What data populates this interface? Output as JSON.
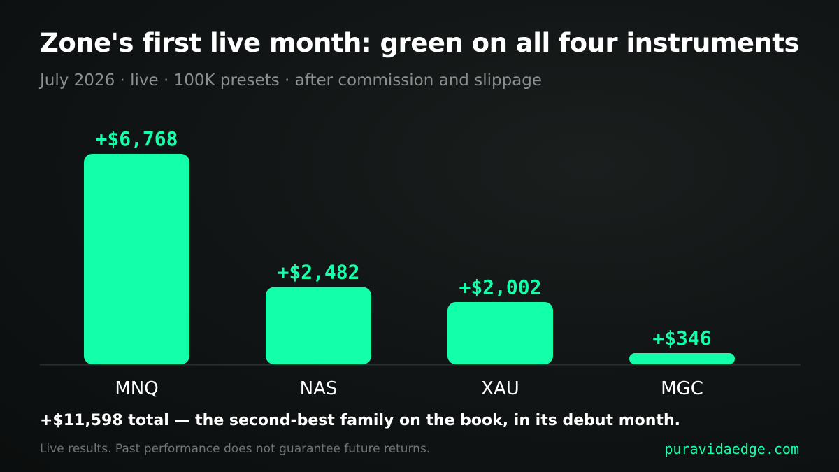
{
  "header": {
    "title": "Zone's first live month: green on all four instruments",
    "subtitle": "July 2026 · live · 100K presets · after commission and slippage"
  },
  "chart_data": {
    "type": "bar",
    "categories": [
      "MNQ",
      "NAS",
      "XAU",
      "MGC"
    ],
    "values": [
      6768,
      2482,
      2002,
      346
    ],
    "data_labels": [
      "+$6,768",
      "+$2,482",
      "+$2,002",
      "+$346"
    ],
    "xlabel": "",
    "ylabel": "",
    "ylim": [
      0,
      6768
    ],
    "grid": false,
    "legend": "none",
    "bar_color": "#14ffaa",
    "baseline_color": "#2a2f2f"
  },
  "footer": {
    "summary": "+$11,598 total — the second-best family on the book, in its debut month.",
    "disclaimer": "Live results. Past performance does not guarantee future returns.",
    "site": "puravidaedge.com"
  }
}
